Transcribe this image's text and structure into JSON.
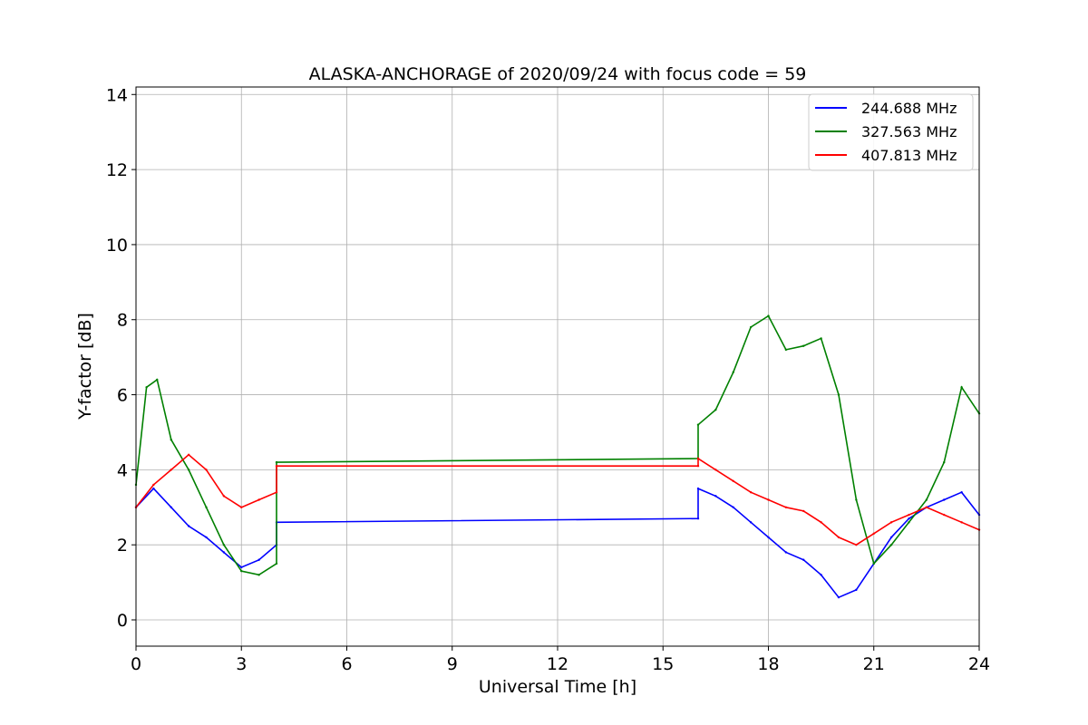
{
  "chart_data": {
    "type": "line",
    "title": "ALASKA-ANCHORAGE of 2020/09/24 with focus code = 59",
    "xlabel": "Universal Time [h]",
    "ylabel": "Y-factor [dB]",
    "xlim": [
      0,
      24
    ],
    "ylim": [
      -0.7,
      14.2
    ],
    "xticks": [
      0,
      3,
      6,
      9,
      12,
      15,
      18,
      21,
      24
    ],
    "xtick_labels": [
      "0",
      "3",
      "6",
      "9",
      "12",
      "15",
      "18",
      "21",
      "24"
    ],
    "yticks": [
      0,
      2,
      4,
      6,
      8,
      10,
      12,
      14
    ],
    "ytick_labels": [
      "0",
      "2",
      "4",
      "6",
      "8",
      "10",
      "12",
      "14"
    ],
    "grid": true,
    "legend_position": "top-right",
    "series": [
      {
        "name": "244.688 MHz",
        "color": "#0000ff",
        "x": [
          0,
          0.5,
          1.0,
          1.5,
          2.0,
          2.5,
          3.0,
          3.5,
          4.0,
          4.0,
          16.0,
          16.0,
          16.5,
          17.0,
          17.5,
          18.0,
          18.5,
          19.0,
          19.5,
          20.0,
          20.5,
          21.0,
          21.5,
          22.0,
          22.5,
          23.0,
          23.5,
          24.0
        ],
        "y": [
          3.0,
          3.5,
          3.0,
          2.5,
          2.2,
          1.8,
          1.4,
          1.6,
          2.0,
          2.6,
          2.7,
          3.5,
          3.3,
          3.0,
          2.6,
          2.2,
          1.8,
          1.6,
          1.2,
          0.6,
          0.8,
          1.5,
          2.2,
          2.7,
          3.0,
          3.2,
          3.4,
          2.8
        ]
      },
      {
        "name": "327.563 MHz",
        "color": "#008000",
        "x": [
          0,
          0.3,
          0.6,
          1.0,
          1.5,
          2.0,
          2.5,
          3.0,
          3.5,
          4.0,
          4.0,
          16.0,
          16.0,
          16.5,
          17.0,
          17.5,
          18.0,
          18.5,
          19.0,
          19.5,
          20.0,
          20.5,
          21.0,
          21.5,
          22.0,
          22.5,
          23.0,
          23.5,
          24.0
        ],
        "y": [
          3.6,
          6.2,
          6.4,
          4.8,
          4.0,
          3.0,
          2.0,
          1.3,
          1.2,
          1.5,
          4.2,
          4.3,
          5.2,
          5.6,
          6.6,
          7.8,
          8.1,
          7.2,
          7.3,
          7.5,
          6.0,
          3.2,
          1.5,
          2.0,
          2.6,
          3.2,
          4.2,
          6.2,
          5.5
        ]
      },
      {
        "name": "407.813 MHz",
        "color": "#ff0000",
        "x": [
          0,
          0.5,
          1.0,
          1.5,
          2.0,
          2.5,
          3.0,
          3.5,
          4.0,
          4.0,
          16.0,
          16.0,
          16.5,
          17.0,
          17.5,
          18.0,
          18.5,
          19.0,
          19.5,
          20.0,
          20.5,
          21.0,
          21.5,
          22.0,
          22.5,
          23.0,
          23.5,
          24.0
        ],
        "y": [
          3.0,
          3.6,
          4.0,
          4.4,
          4.0,
          3.3,
          3.0,
          3.2,
          3.4,
          4.1,
          4.1,
          4.3,
          4.0,
          3.7,
          3.4,
          3.2,
          3.0,
          2.9,
          2.6,
          2.2,
          2.0,
          2.3,
          2.6,
          2.8,
          3.0,
          2.8,
          2.6,
          2.4
        ]
      }
    ]
  }
}
